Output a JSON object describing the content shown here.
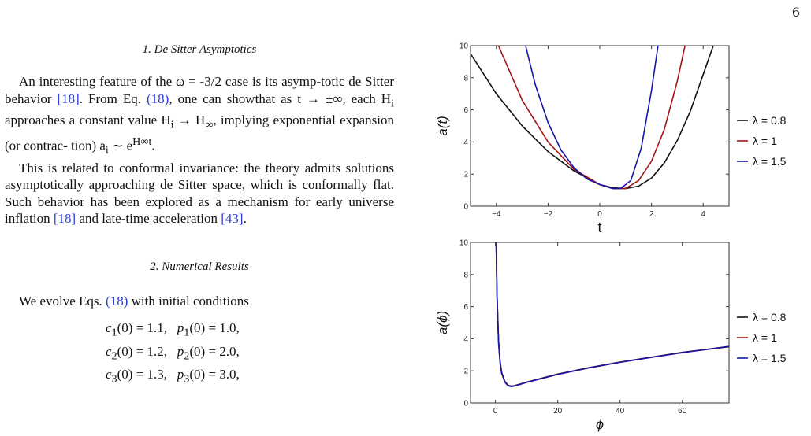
{
  "page_number": "6",
  "section1": {
    "title": "1.   De Sitter Asymptotics",
    "p1": [
      "An interesting feature of the ω = -3/2 case is its asymp-",
      "totic de Sitter behavior ",
      "[18]",
      ". From Eq. ",
      "(18)",
      ", one can show",
      "that as t → ±∞, each H",
      "i",
      " approaches a constant value",
      "H",
      "i",
      " → H",
      "∞",
      ", implying exponential expansion (or contrac-",
      "tion) a",
      "i",
      " ∼ e",
      "H∞t",
      "."
    ],
    "p2": [
      "This is related to conformal invariance: the theory",
      "admits solutions asymptotically approaching de Sitter",
      "space, which is conformally flat. Such behavior has been",
      "explored as a mechanism for early universe inflation ",
      "[18]",
      "and late-time acceleration ",
      "[43]",
      "."
    ]
  },
  "section2": {
    "title": "2.   Numerical Results",
    "p1": [
      "We evolve Eqs. ",
      "(18)",
      " with initial conditions"
    ],
    "equations": [
      {
        "c": "c",
        "ci": "1",
        "cv": "(0) = 1.1,",
        "p": "p",
        "pi": "1",
        "pv": "(0) = 1.0,"
      },
      {
        "c": "c",
        "ci": "2",
        "cv": "(0) = 1.2,",
        "p": "p",
        "pi": "2",
        "pv": "(0) = 2.0,"
      },
      {
        "c": "c",
        "ci": "3",
        "cv": "(0) = 1.3,",
        "p": "p",
        "pi": "3",
        "pv": "(0) = 3.0,"
      }
    ]
  },
  "colors": {
    "black": "#111111",
    "red": "#a31515",
    "blue": "#1515a8",
    "cite": "#2a3fd6"
  },
  "chart_data": [
    {
      "type": "line",
      "xlabel": "t",
      "ylabel": "a(t)",
      "xlim": [
        -5,
        5
      ],
      "ylim": [
        0,
        10
      ],
      "xticks": [
        -4,
        -2,
        0,
        2,
        4
      ],
      "yticks": [
        0,
        2,
        4,
        6,
        8,
        10
      ],
      "legend_placement": "right",
      "series": [
        {
          "name": "λ = 0.8",
          "color": "#111111",
          "x": [
            -5,
            -4,
            -3,
            -2,
            -1,
            0,
            0.5,
            1,
            1.5,
            2,
            2.5,
            3,
            3.5,
            4,
            4.5,
            5
          ],
          "values": [
            9.5,
            7.0,
            5.0,
            3.4,
            2.2,
            1.35,
            1.15,
            1.1,
            1.25,
            1.75,
            2.7,
            4.1,
            5.9,
            8.2,
            10.5,
            13
          ]
        },
        {
          "name": "λ = 1",
          "color": "#a31515",
          "x": [
            -4,
            -3,
            -2,
            -1,
            0,
            0.5,
            1,
            1.5,
            2,
            2.5,
            3,
            3.5
          ],
          "values": [
            10.3,
            6.6,
            4.0,
            2.3,
            1.35,
            1.1,
            1.1,
            1.6,
            2.8,
            4.8,
            7.8,
            11.5
          ]
        },
        {
          "name": "λ = 1.5",
          "color": "#1515a8",
          "x": [
            -2.9,
            -2.5,
            -2,
            -1.5,
            -1,
            -0.5,
            0,
            0.5,
            0.8,
            1.2,
            1.6,
            2,
            2.3
          ],
          "values": [
            10.2,
            7.6,
            5.2,
            3.5,
            2.4,
            1.7,
            1.35,
            1.1,
            1.1,
            1.6,
            3.6,
            7.2,
            10.5
          ]
        }
      ]
    },
    {
      "type": "line",
      "xlabel": "ϕ",
      "ylabel": "a(ϕ)",
      "xlim": [
        -8,
        75
      ],
      "ylim": [
        0,
        10
      ],
      "xticks": [
        0,
        20,
        40,
        60
      ],
      "yticks": [
        0,
        2,
        4,
        6,
        8,
        10
      ],
      "legend_placement": "right",
      "series": [
        {
          "name": "λ = 0.8",
          "color": "#111111",
          "x": [
            0.2,
            0.5,
            1,
            1.5,
            2,
            3,
            4,
            5,
            6,
            8,
            10,
            15,
            20,
            30,
            40,
            50,
            60,
            75
          ],
          "values": [
            10.5,
            6.8,
            3.9,
            2.6,
            1.9,
            1.35,
            1.12,
            1.05,
            1.07,
            1.18,
            1.3,
            1.55,
            1.8,
            2.2,
            2.55,
            2.85,
            3.15,
            3.5
          ]
        },
        {
          "name": "λ = 1",
          "color": "#a31515",
          "x": [
            0.2,
            0.5,
            1,
            1.5,
            2,
            3,
            4,
            5,
            6,
            8,
            10,
            15,
            20,
            30,
            40,
            50,
            60,
            75
          ],
          "values": [
            10.5,
            6.7,
            3.8,
            2.55,
            1.88,
            1.33,
            1.1,
            1.04,
            1.06,
            1.17,
            1.29,
            1.54,
            1.79,
            2.19,
            2.54,
            2.85,
            3.14,
            3.52
          ]
        },
        {
          "name": "λ = 1.5",
          "color": "#1515a8",
          "x": [
            0.2,
            0.5,
            1,
            1.5,
            2,
            3,
            4,
            5,
            6,
            8,
            10,
            15,
            20,
            30,
            40,
            50,
            60,
            75
          ],
          "values": [
            10.5,
            6.6,
            3.7,
            2.5,
            1.85,
            1.3,
            1.08,
            1.02,
            1.05,
            1.16,
            1.28,
            1.53,
            1.78,
            2.18,
            2.53,
            2.84,
            3.13,
            3.52
          ]
        }
      ]
    }
  ]
}
